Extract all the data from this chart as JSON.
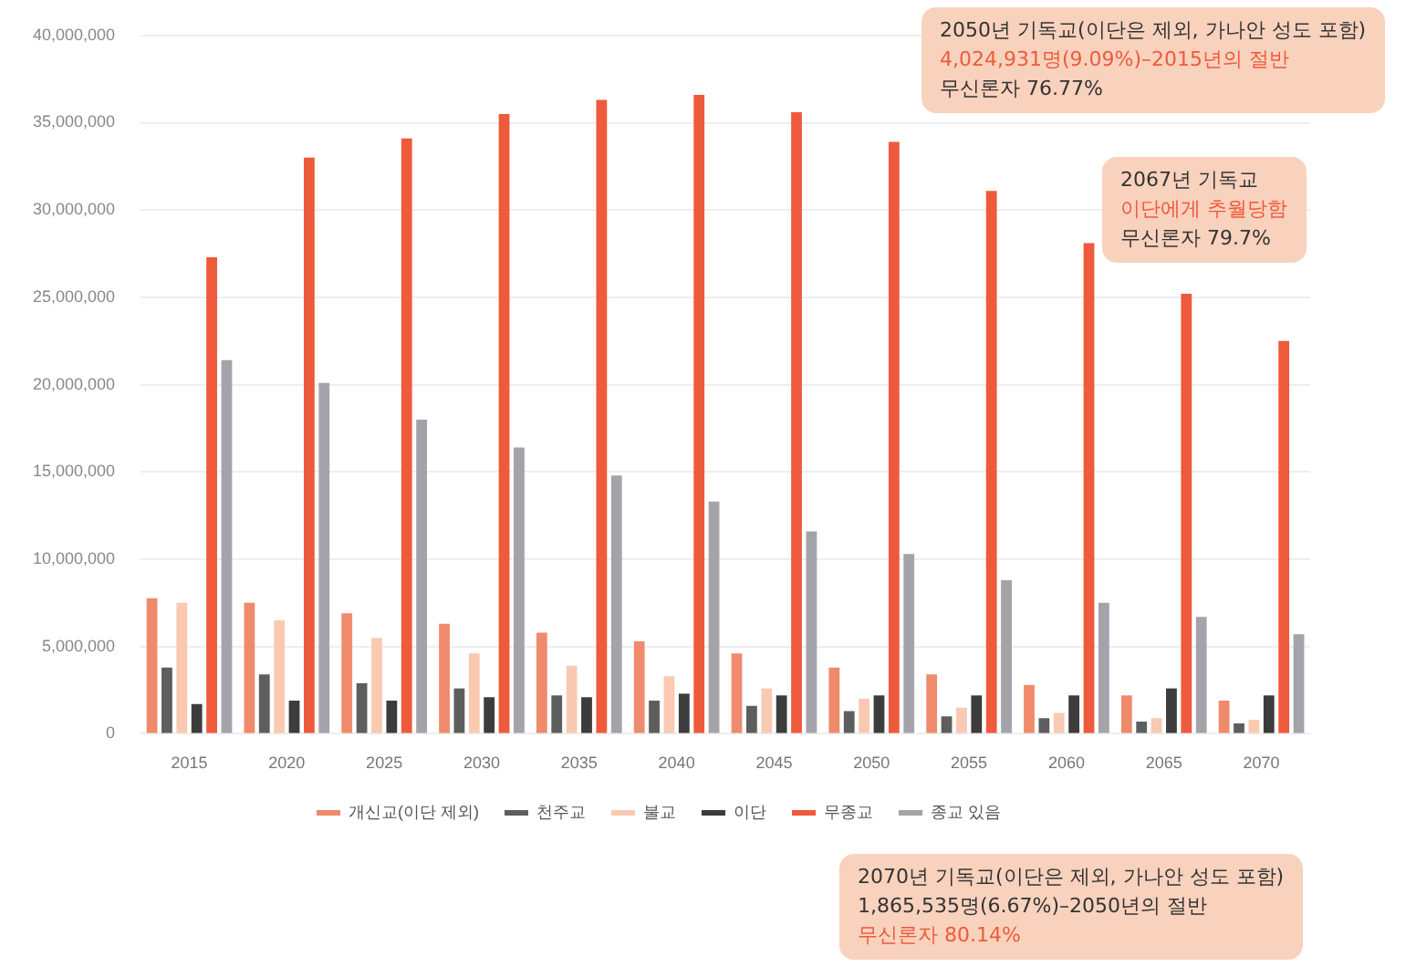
{
  "chart_data": {
    "type": "bar",
    "categories": [
      "2015",
      "2020",
      "2025",
      "2030",
      "2035",
      "2040",
      "2045",
      "2050",
      "2055",
      "2060",
      "2065",
      "2070"
    ],
    "series": [
      {
        "name": "개신교(이단 제외)",
        "color": "#f08a6c",
        "values": [
          7760000.0,
          7500000.0,
          6900000.0,
          6300000.0,
          5800000.0,
          5300000.0,
          4600000.0,
          3800000.0,
          3400000.0,
          2800000.0,
          2200000.0,
          1900000.0
        ]
      },
      {
        "name": "천주교",
        "color": "#5e5e5e",
        "values": [
          3800000.0,
          3400000.0,
          2900000.0,
          2600000.0,
          2200000.0,
          1900000.0,
          1600000.0,
          1300000.0,
          1000000.0,
          900000.0,
          700000.0,
          600000.0
        ]
      },
      {
        "name": "불교",
        "color": "#f9c9b2",
        "values": [
          7500000.0,
          6500000.0,
          5500000.0,
          4600000.0,
          3900000.0,
          3300000.0,
          2600000.0,
          2000000.0,
          1500000.0,
          1200000.0,
          900000.0,
          800000.0
        ]
      },
      {
        "name": "이단",
        "color": "#3c3c3c",
        "values": [
          1700000.0,
          1900000.0,
          1900000.0,
          2100000.0,
          2100000.0,
          2300000.0,
          2200000.0,
          2200000.0,
          2200000.0,
          2200000.0,
          2600000.0,
          2200000.0
        ]
      },
      {
        "name": "무종교",
        "color": "#ee5a3c",
        "values": [
          27300000.0,
          33000000.0,
          34100000.0,
          35500000.0,
          36300000.0,
          36600000.0,
          35600000.0,
          33900000.0,
          31100000.0,
          28100000.0,
          25200000.0,
          22500000.0
        ]
      },
      {
        "name": "종교 있음",
        "color": "#a3a3a9",
        "values": [
          21400000.0,
          20100000.0,
          18000000.0,
          16400000.0,
          14800000.0,
          13300000.0,
          11600000.0,
          10300000.0,
          8800000.0,
          7500000.0,
          6700000.0,
          5700000.0
        ]
      }
    ],
    "ylim": [
      0,
      40000000
    ],
    "yticks": [
      {
        "value": 0,
        "label": "0"
      },
      {
        "value": 5000000,
        "label": "5,000,000"
      },
      {
        "value": 10000000,
        "label": "10,000,000"
      },
      {
        "value": 15000000,
        "label": "15,000,000"
      },
      {
        "value": 20000000,
        "label": "20,000,000"
      },
      {
        "value": 25000000,
        "label": "25,000,000"
      },
      {
        "value": 30000000,
        "label": "30,000,000"
      },
      {
        "value": 35000000,
        "label": "35,000,000"
      },
      {
        "value": 40000000,
        "label": "40,000,000"
      }
    ],
    "grid": "y",
    "legend": "bottom",
    "annotations": [
      "2050년 기독교(이단은 제외, 가나안 성도 포함)\n4,024,931명(9.09%)–2015년의 절반\n무신론자 76.77%",
      "2067년 기독교\n이단에게 추월당함\n무신론자 79.7%",
      "2070년 기독교(이단은 제외, 가나안 성도 포함)\n1,865,535명(6.67%)–2050년의 절반\n무신론자 80.14%"
    ]
  }
}
